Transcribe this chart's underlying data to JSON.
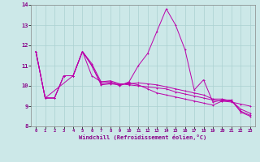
{
  "xlabel": "Windchill (Refroidissement éolien,°C)",
  "background_color": "#cce8e8",
  "grid_color": "#aad0d0",
  "line_color": "#bb00aa",
  "s1": [
    11.7,
    9.4,
    null,
    null,
    10.5,
    11.7,
    11.1,
    10.2,
    10.2,
    10.0,
    10.2,
    11.0,
    11.6,
    12.7,
    13.8,
    13.0,
    11.8,
    9.8,
    10.3,
    9.2,
    9.3,
    9.3,
    8.7,
    8.5
  ],
  "s2": [
    11.7,
    9.4,
    9.4,
    10.5,
    10.5,
    11.7,
    10.5,
    10.2,
    10.25,
    10.1,
    10.05,
    10.0,
    9.95,
    9.9,
    9.85,
    9.7,
    9.6,
    9.5,
    9.4,
    9.3,
    9.25,
    9.2,
    9.1,
    9.0
  ],
  "s3": [
    11.7,
    9.4,
    9.4,
    10.5,
    10.5,
    11.7,
    11.0,
    10.1,
    10.15,
    10.1,
    10.1,
    10.15,
    10.1,
    10.05,
    9.95,
    9.85,
    9.75,
    9.65,
    9.55,
    9.35,
    9.35,
    9.25,
    8.75,
    8.55
  ],
  "s4": [
    11.7,
    9.4,
    9.4,
    10.5,
    10.5,
    11.7,
    11.0,
    10.05,
    10.1,
    10.05,
    10.15,
    10.05,
    9.85,
    9.65,
    9.55,
    9.45,
    9.35,
    9.25,
    9.15,
    9.05,
    9.25,
    9.25,
    8.85,
    8.65
  ],
  "xlim": [
    -0.5,
    23.5
  ],
  "ylim": [
    8,
    14
  ],
  "yticks": [
    8,
    9,
    10,
    11,
    12,
    13,
    14
  ],
  "xticks": [
    0,
    1,
    2,
    3,
    4,
    5,
    6,
    7,
    8,
    9,
    10,
    11,
    12,
    13,
    14,
    15,
    16,
    17,
    18,
    19,
    20,
    21,
    22,
    23
  ]
}
